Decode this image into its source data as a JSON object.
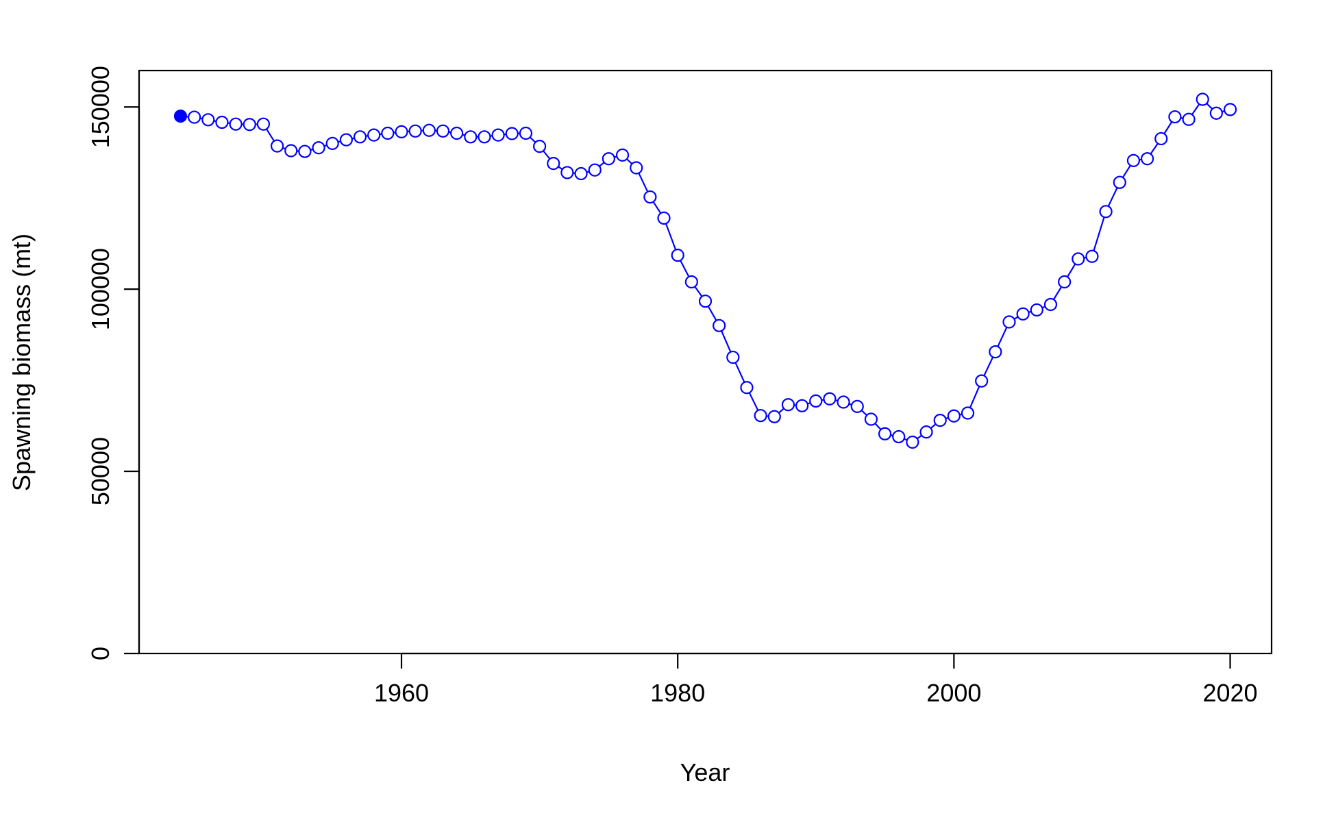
{
  "chart_data": {
    "type": "line",
    "xlabel": "Year",
    "ylabel": "Spawning biomass (mt)",
    "xlim": [
      1941,
      2023
    ],
    "ylim": [
      0,
      160000
    ],
    "x_ticks": [
      1960,
      1980,
      2000,
      2020
    ],
    "y_ticks": [
      0,
      50000,
      100000,
      150000
    ],
    "grid": false,
    "legend": "none",
    "colors": {
      "series": "#0000ff",
      "axes": "#000000"
    },
    "series": [
      {
        "x": [
          1944,
          1945,
          1946,
          1947,
          1948,
          1949,
          1950,
          1951,
          1952,
          1953,
          1954,
          1955,
          1956,
          1957,
          1958,
          1959,
          1960,
          1961,
          1962,
          1963,
          1964,
          1965,
          1966,
          1967,
          1968,
          1969,
          1970,
          1971,
          1972,
          1973,
          1974,
          1975,
          1976,
          1977,
          1978,
          1979,
          1980,
          1981,
          1982,
          1983,
          1984,
          1985,
          1986,
          1987,
          1988,
          1989,
          1990,
          1991,
          1992,
          1993,
          1994,
          1995,
          1996,
          1997,
          1998,
          1999,
          2000,
          2001,
          2002,
          2003,
          2004,
          2005,
          2006,
          2007,
          2008,
          2009,
          2010,
          2011,
          2012,
          2013,
          2014,
          2015,
          2016,
          2017,
          2018,
          2019,
          2020
        ],
        "y": [
          147500,
          147200,
          146500,
          145800,
          145300,
          145200,
          145300,
          139300,
          138000,
          137800,
          138800,
          140000,
          141000,
          141800,
          142300,
          142800,
          143200,
          143400,
          143600,
          143400,
          142800,
          141800,
          141800,
          142300,
          142700,
          142800,
          139200,
          134500,
          132000,
          131700,
          132700,
          135800,
          136800,
          133300,
          125300,
          119500,
          109300,
          102000,
          96700,
          90000,
          81300,
          73000,
          65300,
          65000,
          68300,
          68000,
          69300,
          69900,
          69000,
          67800,
          64300,
          60300,
          59500,
          58000,
          60800,
          64000,
          65200,
          66000,
          74800,
          82800,
          91000,
          93200,
          94300,
          95800,
          102000,
          108300,
          109000,
          121300,
          129300,
          135300,
          135800,
          141300,
          147300,
          146600,
          152100,
          148300,
          149300
        ],
        "first_point_filled": true
      }
    ]
  }
}
